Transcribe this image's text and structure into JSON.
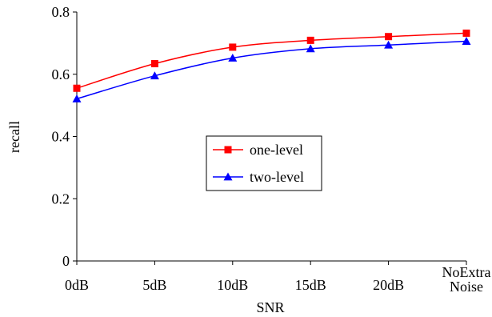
{
  "chart_data": {
    "type": "line",
    "categories": [
      "0dB",
      "5dB",
      "10dB",
      "15dB",
      "20dB",
      "NoExtra Noise"
    ],
    "category_lines": [
      [
        "0dB"
      ],
      [
        "5dB"
      ],
      [
        "10dB"
      ],
      [
        "15dB"
      ],
      [
        "20dB"
      ],
      [
        "NoExtra",
        "Noise"
      ]
    ],
    "series": [
      {
        "name": "one-level",
        "values": [
          0.555,
          0.634,
          0.687,
          0.709,
          0.721,
          0.732
        ],
        "color": "#ff0000",
        "marker": "square"
      },
      {
        "name": "two-level",
        "values": [
          0.521,
          0.595,
          0.652,
          0.682,
          0.694,
          0.706
        ],
        "color": "#0000ff",
        "marker": "triangle"
      }
    ],
    "xlabel": "SNR",
    "ylabel": "recall",
    "ylim": [
      0,
      0.8
    ],
    "yticks": [
      0,
      0.2,
      0.4,
      0.6,
      0.8
    ],
    "ytick_labels": [
      "0",
      "0.2",
      "0.4",
      "0.6",
      "0.8"
    ],
    "grid": false,
    "legend": "center",
    "smooth": true
  }
}
